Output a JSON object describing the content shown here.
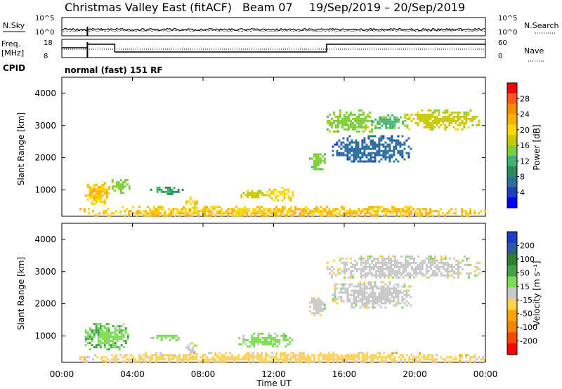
{
  "header": {
    "title": "Christmas Valley East (fitACF)",
    "beam": "Beam 07",
    "dates": "19/Sep/2019 – 20/Sep/2019"
  },
  "labels": {
    "nsky": "N.Sky",
    "nsearch": "N.Search",
    "freq_line1": "Freq.",
    "freq_line2": "[MHz]",
    "nave": "Nave",
    "cpid": "CPID",
    "cpid_value": "normal (fast) 151 RF",
    "noise_ticks_left": [
      "10^5",
      "10^0"
    ],
    "noise_ticks_right": [
      "10^5",
      "10^0"
    ],
    "freq_ticks": [
      "18",
      "8"
    ],
    "nave_ticks": [
      "60",
      "0"
    ]
  },
  "colorbars": {
    "power": {
      "label": "Power [dB]",
      "ticks": [
        "28",
        "24",
        "20",
        "16",
        "12",
        "8",
        "4"
      ],
      "colors_top_to_bottom": [
        "#ff0000",
        "#ff5a1a",
        "#ff8c00",
        "#ffb000",
        "#ffd700",
        "#c8c800",
        "#7fcc3a",
        "#3cb371",
        "#2e8b57",
        "#2f6f9f",
        "#1f3fbf",
        "#0000ff"
      ]
    },
    "velocity": {
      "label": "Velocity [m s⁻¹]",
      "ticks": [
        "200",
        "100",
        "50",
        "15",
        "-15",
        "-50",
        "-100",
        "-200"
      ],
      "colors_top_to_bottom": [
        "#1e3cc8",
        "#2b5aa0",
        "#2e7d32",
        "#43a047",
        "#7ed957",
        "#c8c8c8",
        "#ffd24d",
        "#ffa500",
        "#ff7f00",
        "#ff4500",
        "#ff0000"
      ]
    }
  },
  "axes": {
    "ylabel": "Slant Range [km]",
    "xlabel": "Time UT",
    "y_ticks": [
      "1000",
      "2000",
      "3000",
      "4000"
    ],
    "x_ticks": [
      "00:00",
      "04:00",
      "08:00",
      "12:00",
      "16:00",
      "20:00",
      "00:00"
    ]
  },
  "chart_data": [
    {
      "type": "heatmap",
      "title": "Power",
      "xlabel": "Time UT",
      "ylabel": "Slant Range [km]",
      "xlim": [
        0,
        24
      ],
      "ylim": [
        180,
        4500
      ],
      "value_range": [
        0,
        30
      ],
      "blobs": [
        {
          "t0": 1.3,
          "t1": 2.7,
          "r0": 550,
          "r1": 1250,
          "value": 20
        },
        {
          "t0": 2.7,
          "t1": 3.8,
          "r0": 900,
          "r1": 1400,
          "value": 14
        },
        {
          "t0": 5.0,
          "t1": 6.8,
          "r0": 900,
          "r1": 1100,
          "value": 10
        },
        {
          "t0": 7.0,
          "t1": 7.6,
          "r0": 350,
          "r1": 800,
          "value": 18
        },
        {
          "t0": 10.0,
          "t1": 11.6,
          "r0": 750,
          "r1": 1000,
          "value": 16
        },
        {
          "t0": 11.6,
          "t1": 13.1,
          "r0": 700,
          "r1": 1100,
          "value": 18
        },
        {
          "t0": 14.0,
          "t1": 14.9,
          "r0": 1650,
          "r1": 2200,
          "value": 14
        },
        {
          "t0": 15.0,
          "t1": 17.6,
          "r0": 2800,
          "r1": 3500,
          "value": 14
        },
        {
          "t0": 17.6,
          "t1": 19.4,
          "r0": 2900,
          "r1": 3350,
          "value": 12
        },
        {
          "t0": 19.4,
          "t1": 23.6,
          "r0": 2900,
          "r1": 3500,
          "value": 16
        },
        {
          "t0": 15.3,
          "t1": 19.8,
          "r0": 1900,
          "r1": 2700,
          "value": 6
        },
        {
          "t0": 1.0,
          "t1": 24.0,
          "r0": 180,
          "r1": 500,
          "value": 20
        }
      ]
    },
    {
      "type": "heatmap",
      "title": "Velocity",
      "xlabel": "Time UT",
      "ylabel": "Slant Range [km]",
      "xlim": [
        0,
        24
      ],
      "ylim": [
        180,
        4500
      ],
      "value_range": [
        -200,
        200
      ],
      "blobs": [
        {
          "t0": 1.3,
          "t1": 3.8,
          "r0": 550,
          "r1": 1400,
          "value": 50
        },
        {
          "t0": 5.0,
          "t1": 6.8,
          "r0": 900,
          "r1": 1100,
          "value": 40
        },
        {
          "t0": 7.0,
          "t1": 7.6,
          "r0": 350,
          "r1": 800,
          "value": 0
        },
        {
          "t0": 10.0,
          "t1": 13.1,
          "r0": 700,
          "r1": 1100,
          "value": 30
        },
        {
          "t0": 14.0,
          "t1": 14.9,
          "r0": 1650,
          "r1": 2200,
          "value": 0
        },
        {
          "t0": 15.0,
          "t1": 23.6,
          "r0": 2800,
          "r1": 3500,
          "value": 0
        },
        {
          "t0": 15.3,
          "t1": 19.8,
          "r0": 1900,
          "r1": 2700,
          "value": 0
        },
        {
          "t0": 1.0,
          "t1": 24.0,
          "r0": 180,
          "r1": 500,
          "value": -30
        }
      ]
    }
  ]
}
